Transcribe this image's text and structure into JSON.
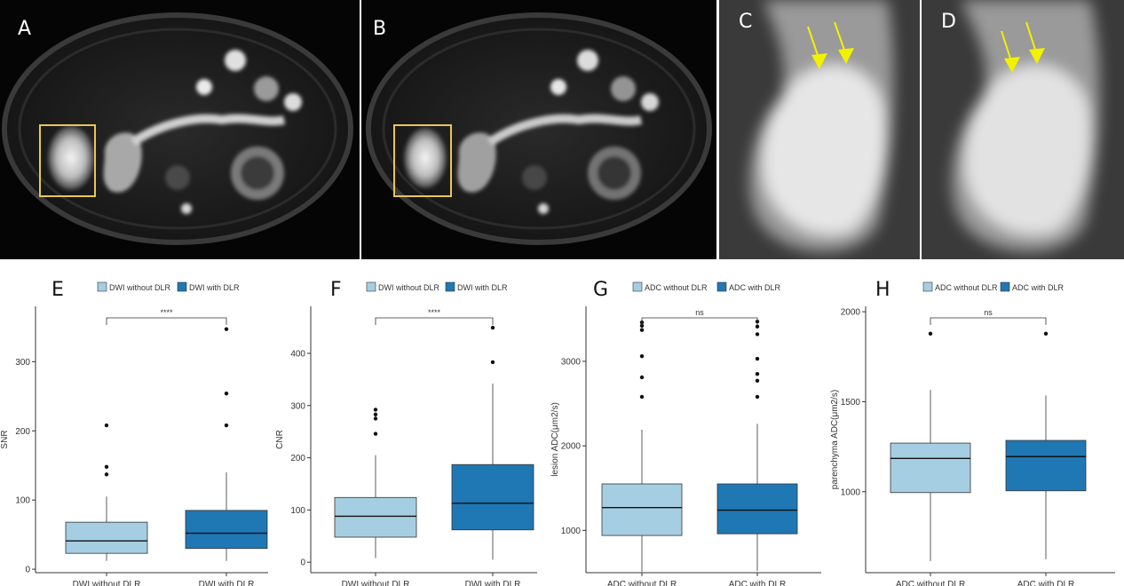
{
  "panels": {
    "A": "A",
    "B": "B",
    "C": "C",
    "D": "D",
    "E": "E",
    "F": "F",
    "G": "G",
    "H": "H"
  },
  "colors": {
    "without": "#a6cee3",
    "with": "#1f78b4",
    "roi_box": "#e8c65a",
    "arrow": "#f2f200"
  },
  "chart_data": [
    {
      "panel": "E",
      "type": "box",
      "legend": [
        "DWI without DLR",
        "DWI with DLR"
      ],
      "legend_position": "top",
      "categories": [
        "DWI without DLR",
        "DWI with DLR"
      ],
      "ylabel": "SNR",
      "ylim": [
        -5,
        380
      ],
      "yticks": [
        0,
        100,
        200,
        300
      ],
      "grid": false,
      "significance": "****",
      "boxes": [
        {
          "min": 12,
          "q1": 23,
          "median": 41,
          "q3": 68,
          "max": 105,
          "outliers": [
            137,
            148,
            208
          ]
        },
        {
          "min": 12,
          "q1": 30,
          "median": 52,
          "q3": 85,
          "max": 140,
          "outliers": [
            208,
            254,
            347
          ]
        }
      ]
    },
    {
      "panel": "F",
      "type": "box",
      "legend": [
        "DWI without DLR",
        "DWI with DLR"
      ],
      "legend_position": "top",
      "categories": [
        "DWI without DLR",
        "DWI with DLR"
      ],
      "ylabel": "CNR",
      "ylim": [
        -20,
        490
      ],
      "yticks": [
        0,
        100,
        200,
        300,
        400
      ],
      "grid": false,
      "significance": "****",
      "boxes": [
        {
          "min": 8,
          "q1": 48,
          "median": 88,
          "q3": 124,
          "max": 205,
          "outliers": [
            246,
            275,
            283,
            292
          ]
        },
        {
          "min": 5,
          "q1": 62,
          "median": 113,
          "q3": 187,
          "max": 342,
          "outliers": [
            383,
            449
          ]
        }
      ]
    },
    {
      "panel": "G",
      "type": "box",
      "legend": [
        "ADC without DLR",
        "ADC with DLR"
      ],
      "legend_position": "top",
      "categories": [
        "ADC without DLR",
        "ADC with DLR"
      ],
      "ylabel": "lesion ADC(μm2/s)",
      "ylim": [
        500,
        3650
      ],
      "yticks": [
        1000,
        2000,
        3000
      ],
      "grid": false,
      "significance": "ns",
      "boxes": [
        {
          "min": 510,
          "q1": 940,
          "median": 1270,
          "q3": 1550,
          "max": 2190,
          "outliers": [
            2580,
            2810,
            3060,
            3370,
            3420,
            3460
          ]
        },
        {
          "min": 520,
          "q1": 960,
          "median": 1240,
          "q3": 1550,
          "max": 2260,
          "outliers": [
            2580,
            2770,
            2850,
            3030,
            3320,
            3410,
            3470
          ]
        }
      ]
    },
    {
      "panel": "H",
      "type": "box",
      "legend": [
        "ADC without DLR",
        "ADC with DLR"
      ],
      "legend_position": "top",
      "categories": [
        "ADC without DLR",
        "ADC with DLR"
      ],
      "ylabel": "parenchyma ADC(μm2/s)",
      "ylim": [
        550,
        2030
      ],
      "yticks": [
        1000,
        1500,
        2000
      ],
      "grid": false,
      "significance": "ns",
      "boxes": [
        {
          "min": 615,
          "q1": 995,
          "median": 1185,
          "q3": 1270,
          "max": 1565,
          "outliers": [
            1878
          ]
        },
        {
          "min": 625,
          "q1": 1005,
          "median": 1195,
          "q3": 1285,
          "max": 1535,
          "outliers": [
            1878
          ]
        }
      ]
    }
  ]
}
